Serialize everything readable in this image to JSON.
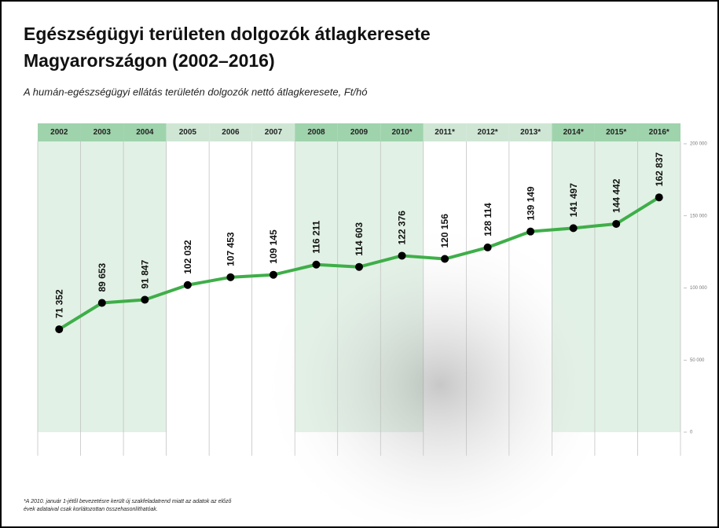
{
  "chart_data": {
    "type": "line",
    "title": [
      "Egészségügyi területen dolgozók átlagkeresete",
      "Magyarországon (2002–2016)"
    ],
    "subtitle": "A humán-egészségügyi ellátás területén dolgozók nettó átlagkeresete, Ft/hó",
    "categories": [
      "2002",
      "2003",
      "2004",
      "2005",
      "2006",
      "2007",
      "2008",
      "2009",
      "2010*",
      "2011*",
      "2012*",
      "2013*",
      "2014*",
      "2015*",
      "2016*"
    ],
    "series": [
      {
        "color": "#3fae49",
        "values": [
          71352,
          89653,
          91847,
          102032,
          107453,
          109145,
          116211,
          114603,
          122376,
          120156,
          128114,
          139149,
          141497,
          144442,
          162837
        ],
        "value_labels": [
          "71 352",
          "89 653",
          "91 847",
          "102 032",
          "107 453",
          "109 145",
          "116 211",
          "114 603",
          "122 376",
          "120 156",
          "128 114",
          "139 149",
          "141 497",
          "144 442",
          "162 837"
        ]
      }
    ],
    "ylim": [
      0,
      200000
    ],
    "yticks": [
      0,
      {
        "value": 50000,
        "label": "50 000"
      },
      {
        "value": 100000,
        "label": "100 000"
      },
      {
        "value": 150000,
        "label": "150 000"
      },
      {
        "value": 200000,
        "label": "200 000"
      }
    ],
    "grid": false,
    "footnote": [
      "*A 2010. január 1-jétől bevezetésre került új szakfeladatrend miatt az adatok az előző",
      "évek adataival csak korlátozottan összehasonlíthatóak."
    ]
  }
}
